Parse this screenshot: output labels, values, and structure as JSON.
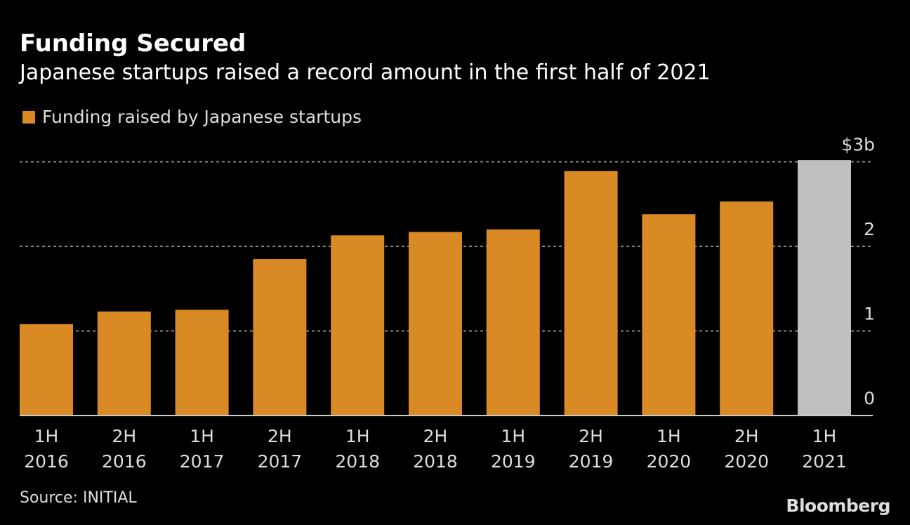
{
  "chart_data": {
    "type": "bar",
    "title": "Funding Secured",
    "subtitle": "Japanese startups raised a record amount in the first half of 2021",
    "legend": [
      {
        "name": "Funding raised by Japanese startups",
        "color": "#DA8A24"
      }
    ],
    "legend_placement": "top-left",
    "categories": [
      [
        "1H",
        "2016"
      ],
      [
        "2H",
        "2016"
      ],
      [
        "1H",
        "2017"
      ],
      [
        "2H",
        "2017"
      ],
      [
        "1H",
        "2018"
      ],
      [
        "2H",
        "2018"
      ],
      [
        "1H",
        "2019"
      ],
      [
        "2H",
        "2019"
      ],
      [
        "1H",
        "2020"
      ],
      [
        "2H",
        "2020"
      ],
      [
        "1H",
        "2021"
      ]
    ],
    "values": [
      1.08,
      1.23,
      1.25,
      1.85,
      2.13,
      2.17,
      2.2,
      2.89,
      2.38,
      2.53,
      3.02
    ],
    "colors": [
      "#DA8A24",
      "#DA8A24",
      "#DA8A24",
      "#DA8A24",
      "#DA8A24",
      "#DA8A24",
      "#DA8A24",
      "#DA8A24",
      "#DA8A24",
      "#DA8A24",
      "#C0C0C0"
    ],
    "ylim": [
      0,
      3
    ],
    "yticks": [
      {
        "value": 0,
        "label": "0"
      },
      {
        "value": 1,
        "label": "1"
      },
      {
        "value": 2,
        "label": "2"
      },
      {
        "value": 3,
        "label": "$3b"
      }
    ],
    "yaxis_side": "right",
    "grid": true,
    "source": "Source: INITIAL"
  },
  "branding": "Bloomberg"
}
